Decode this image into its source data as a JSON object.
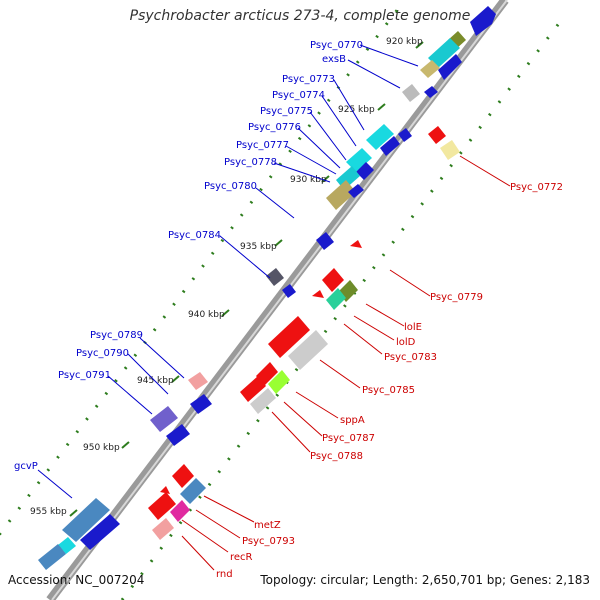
{
  "title": "Psychrobacter arcticus 273-4, complete genome",
  "accession": "Accession: NC_007204",
  "topology": "Topology: circular; Length: 2,650,701 bp; Genes: 2,183",
  "colors": {
    "forward_label": "#0000cc",
    "reverse_label": "#cc0000",
    "backbone": "#888888",
    "tick": "#2e7d1e"
  },
  "ticks": [
    "920 kbp",
    "925 kbp",
    "930 kbp",
    "935 kbp",
    "940 kbp",
    "945 kbp",
    "950 kbp",
    "955 kbp"
  ],
  "forward_genes": [
    "Psyc_0770",
    "exsB",
    "Psyc_0773",
    "Psyc_0774",
    "Psyc_0775",
    "Psyc_0776",
    "Psyc_0777",
    "Psyc_0778",
    "Psyc_0780",
    "Psyc_0784",
    "Psyc_0789",
    "Psyc_0790",
    "Psyc_0791",
    "gcvP"
  ],
  "reverse_genes": [
    "Psyc_0772",
    "Psyc_0779",
    "lolE",
    "lolD",
    "Psyc_0783",
    "Psyc_0785",
    "sppA",
    "Psyc_0787",
    "Psyc_0788",
    "metZ",
    "Psyc_0793",
    "recR",
    "rnd"
  ]
}
